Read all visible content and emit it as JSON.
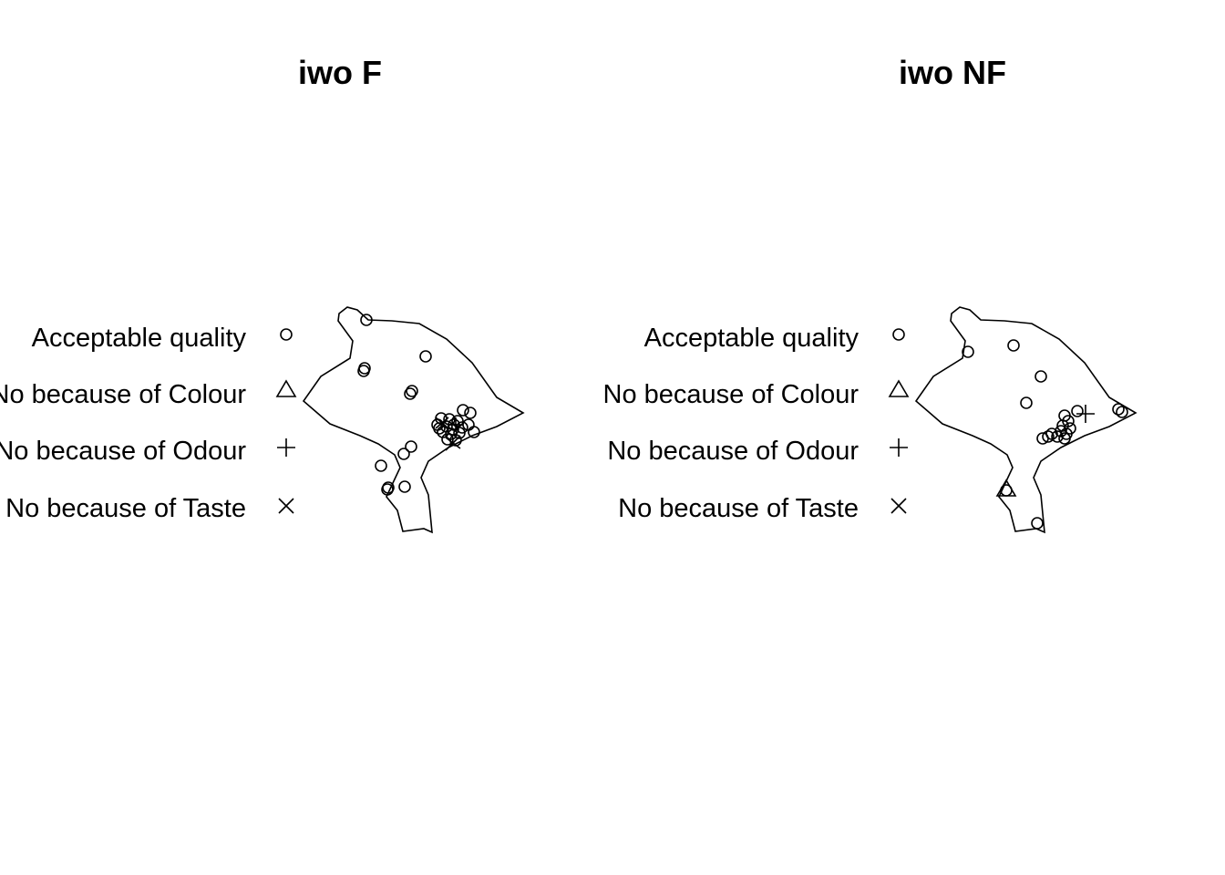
{
  "panels": [
    {
      "title": "iwo F",
      "legend": [
        {
          "label": "Acceptable quality",
          "symbol": "circle"
        },
        {
          "label": "No because of Colour",
          "symbol": "triangle"
        },
        {
          "label": "No because of Odour",
          "symbol": "plus"
        },
        {
          "label": "No because of Taste",
          "symbol": "cross"
        }
      ]
    },
    {
      "title": "iwo NF",
      "legend": [
        {
          "label": "Acceptable quality",
          "symbol": "circle"
        },
        {
          "label": "No because of Colour",
          "symbol": "triangle"
        },
        {
          "label": "No because of Odour",
          "symbol": "plus"
        },
        {
          "label": "No because of Taste",
          "symbol": "cross"
        }
      ]
    }
  ]
}
